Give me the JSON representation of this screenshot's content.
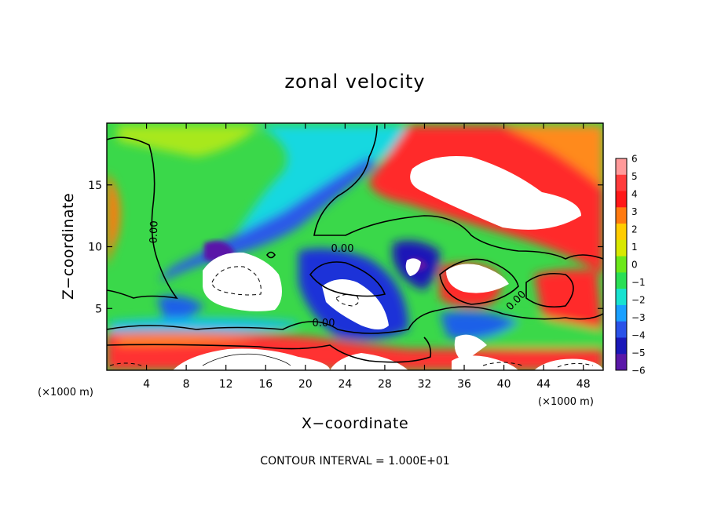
{
  "chart_data": {
    "type": "heatmap",
    "title": "zonal velocity",
    "xlabel": "X−coordinate",
    "ylabel": "Z−coordinate",
    "xlim": [
      0,
      50
    ],
    "ylim": [
      0,
      20
    ],
    "x_ticks": [
      "4",
      "8",
      "12",
      "16",
      "20",
      "24",
      "28",
      "32",
      "36",
      "40",
      "44",
      "48"
    ],
    "x_tick_values": [
      4,
      8,
      12,
      16,
      20,
      24,
      28,
      32,
      36,
      40,
      44,
      48
    ],
    "y_ticks": [
      "5",
      "10",
      "15"
    ],
    "y_tick_values": [
      5,
      10,
      15
    ],
    "x_unit_left": "(×1000 m)",
    "x_unit_right": "(×1000 m)",
    "colorbar": {
      "labels": [
        "6",
        "5",
        "4",
        "3",
        "2",
        "1",
        "0",
        "−1",
        "−2",
        "−3",
        "−4",
        "−5",
        "−6"
      ],
      "values": [
        6,
        5,
        4,
        3,
        2,
        1,
        0,
        -1,
        -2,
        -3,
        -4,
        -5,
        -6
      ],
      "colors": [
        "#ff9a9a",
        "#ff3b3b",
        "#ff1818",
        "#ff7a10",
        "#ffcc00",
        "#d8e800",
        "#6ce81a",
        "#2adf55",
        "#18e2d0",
        "#1aa0ff",
        "#2a52e8",
        "#1a18b8",
        "#5a18a8"
      ]
    },
    "contour_labels": [
      "0.00",
      "0.00",
      "0.00",
      "0.00"
    ],
    "note": "CONTOUR INTERVAL = 1.000E+01",
    "grid": false,
    "background": "#3ad84a"
  }
}
